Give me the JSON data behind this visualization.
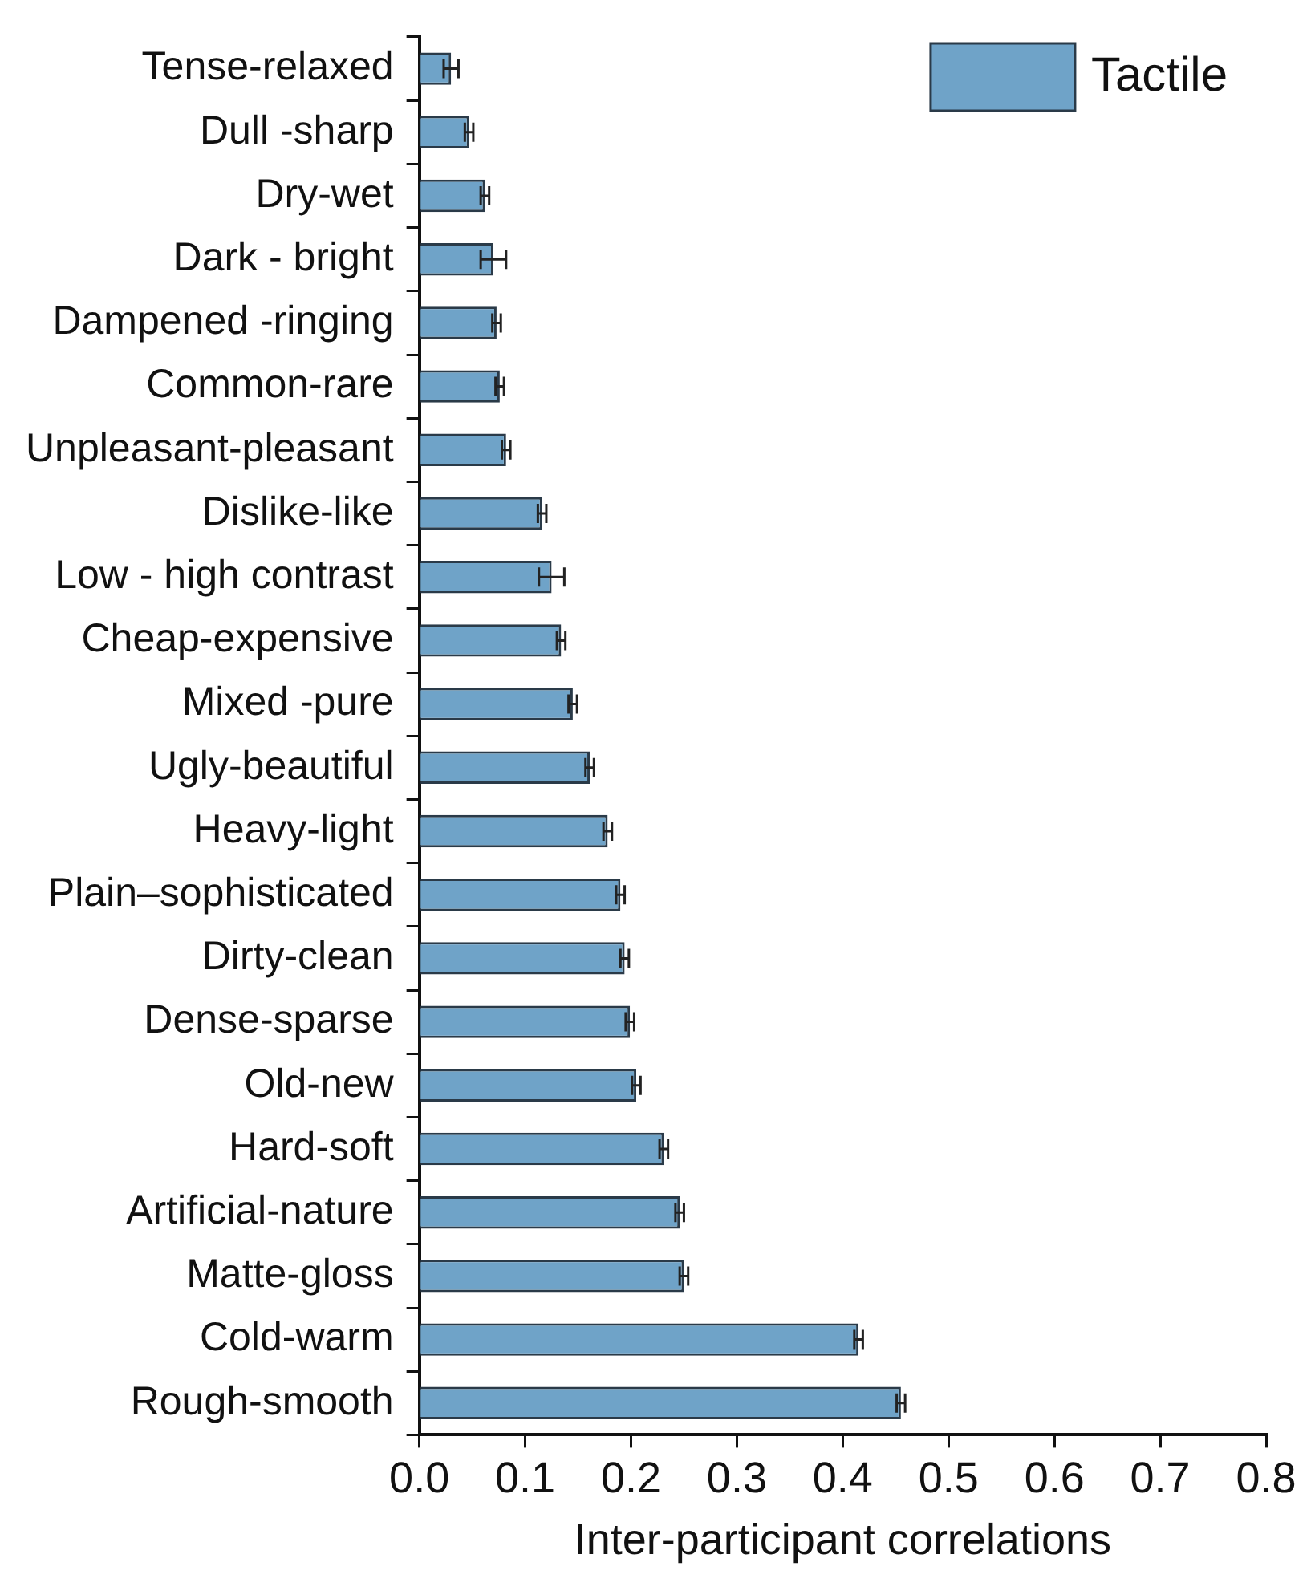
{
  "chart_data": {
    "type": "bar",
    "orientation": "horizontal",
    "xlabel": "Inter-participant correlations",
    "categories": [
      "Tense-relaxed",
      "Dull -sharp",
      "Dry-wet",
      "Dark - bright",
      "Dampened -ringing",
      "Common-rare",
      "Unpleasant-pleasant",
      "Dislike-like",
      "Low - high contrast",
      "Cheap-expensive",
      "Mixed -pure",
      "Ugly-beautiful",
      "Heavy-light",
      "Plain–sophisticated",
      "Dirty-clean",
      "Dense-sparse",
      "Old-new",
      "Hard-soft",
      "Artificial-nature",
      "Matte-gloss",
      "Cold-warm",
      "Rough-smooth"
    ],
    "series": [
      {
        "name": "Tactile",
        "color": "#6fa3c8",
        "values": [
          0.03,
          0.047,
          0.062,
          0.07,
          0.073,
          0.076,
          0.082,
          0.116,
          0.125,
          0.134,
          0.145,
          0.161,
          0.178,
          0.19,
          0.194,
          0.199,
          0.205,
          0.231,
          0.246,
          0.25,
          0.415,
          0.455
        ],
        "errors": [
          0.007,
          0.004,
          0.004,
          0.012,
          0.004,
          0.004,
          0.004,
          0.004,
          0.012,
          0.004,
          0.004,
          0.004,
          0.004,
          0.004,
          0.004,
          0.004,
          0.004,
          0.004,
          0.004,
          0.004,
          0.004,
          0.004
        ]
      }
    ],
    "xlim": [
      0,
      0.8
    ],
    "xticks": [
      {
        "value": 0,
        "label": "0.0"
      },
      {
        "value": 0.1,
        "label": "0.1"
      },
      {
        "value": 0.2,
        "label": "0.2"
      },
      {
        "value": 0.3,
        "label": "0.3"
      },
      {
        "value": 0.4,
        "label": "0.4"
      },
      {
        "value": 0.5,
        "label": "0.5"
      },
      {
        "value": 0.6,
        "label": "0.6"
      },
      {
        "value": 0.7,
        "label": "0.7"
      },
      {
        "value": 0.8,
        "label": "0.8"
      }
    ],
    "grid": false,
    "legend": "top right"
  }
}
